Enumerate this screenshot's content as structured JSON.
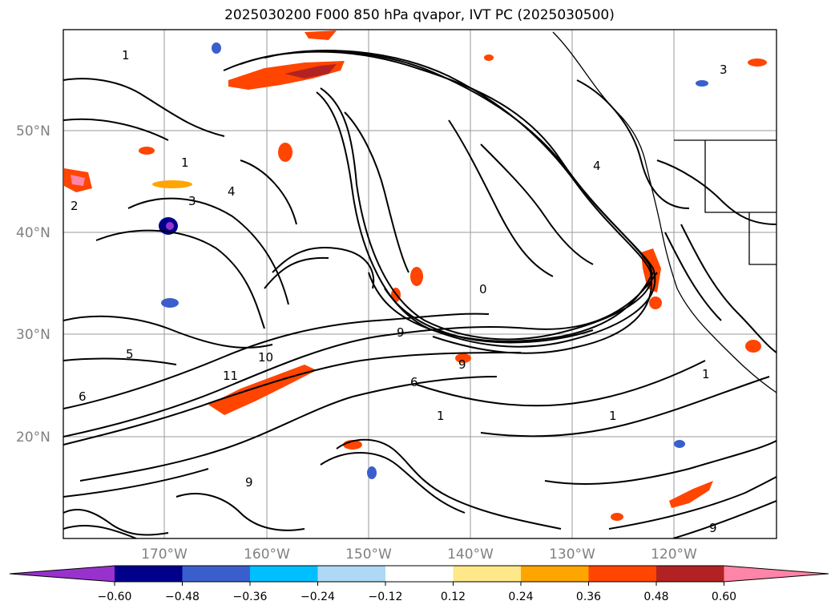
{
  "title": "2025030200 F000 850 hPa qvapor, IVT PC (2025030500)",
  "map": {
    "lat_labels": [
      "50°N",
      "40°N",
      "30°N",
      "20°N"
    ],
    "lon_labels": [
      "170°W",
      "160°W",
      "150°W",
      "140°W",
      "130°W",
      "120°W"
    ],
    "contour_labels": [
      "1",
      "2",
      "3",
      "4",
      "5",
      "6",
      "9",
      "10",
      "11",
      "0"
    ]
  },
  "colorbar": {
    "ticks": [
      "−0.60",
      "−0.48",
      "−0.36",
      "−0.24",
      "−0.12",
      "0.12",
      "0.24",
      "0.36",
      "0.48",
      "0.60"
    ],
    "colors": [
      "#9932CC",
      "#00008B",
      "#3A5FCD",
      "#00BFFF",
      "#ADD8F6",
      "#FFFFFF",
      "#FFE88A",
      "#FFA500",
      "#FF4500",
      "#B22222",
      "#FF85A8"
    ]
  }
}
